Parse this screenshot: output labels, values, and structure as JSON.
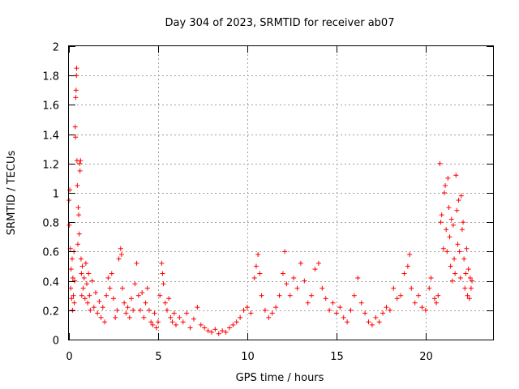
{
  "chart_data": {
    "type": "scatter",
    "title": "Day 304 of 2023, SRMTID for receiver ab07",
    "xlabel": "GPS time / hours",
    "ylabel": "SRMTID / TECUs",
    "xlim": [
      0,
      23.78
    ],
    "ylim": [
      0,
      2
    ],
    "grid": true,
    "x_ticks": [
      "0",
      "5",
      "10",
      "15",
      "20"
    ],
    "y_ticks": [
      "0",
      "0.2",
      "0.4",
      "0.6",
      "0.8",
      "1",
      "1.2",
      "1.4",
      "1.6",
      "1.8",
      "2"
    ],
    "marker": "+",
    "colors": {
      "series": "#ff0000",
      "grid": "#a0a0a0",
      "axis": "#000000"
    },
    "series": [
      {
        "name": "SRMTID",
        "points": [
          [
            0.0,
            0.95
          ],
          [
            0.02,
            0.78
          ],
          [
            0.05,
            1.02
          ],
          [
            0.08,
            0.62
          ],
          [
            0.1,
            0.35
          ],
          [
            0.12,
            0.48
          ],
          [
            0.15,
            0.28
          ],
          [
            0.18,
            0.55
          ],
          [
            0.2,
            0.2
          ],
          [
            0.22,
            0.42
          ],
          [
            0.25,
            0.3
          ],
          [
            0.28,
            0.6
          ],
          [
            0.3,
            0.25
          ],
          [
            0.32,
            0.4
          ],
          [
            0.35,
            1.45
          ],
          [
            0.37,
            1.38
          ],
          [
            0.38,
            1.65
          ],
          [
            0.4,
            1.7
          ],
          [
            0.42,
            1.8
          ],
          [
            0.43,
            1.85
          ],
          [
            0.45,
            1.22
          ],
          [
            0.47,
            1.05
          ],
          [
            0.5,
            0.65
          ],
          [
            0.52,
            0.9
          ],
          [
            0.55,
            0.85
          ],
          [
            0.58,
            0.72
          ],
          [
            0.6,
            1.2
          ],
          [
            0.62,
            1.15
          ],
          [
            0.65,
            1.22
          ],
          [
            0.68,
            0.55
          ],
          [
            0.7,
            0.45
          ],
          [
            0.72,
            0.3
          ],
          [
            0.75,
            0.5
          ],
          [
            0.8,
            0.35
          ],
          [
            0.85,
            0.42
          ],
          [
            0.9,
            0.28
          ],
          [
            0.95,
            0.52
          ],
          [
            1.0,
            0.38
          ],
          [
            1.05,
            0.25
          ],
          [
            1.1,
            0.45
          ],
          [
            1.15,
            0.3
          ],
          [
            1.2,
            0.2
          ],
          [
            1.3,
            0.4
          ],
          [
            1.4,
            0.22
          ],
          [
            1.5,
            0.32
          ],
          [
            1.6,
            0.18
          ],
          [
            1.7,
            0.26
          ],
          [
            1.8,
            0.15
          ],
          [
            1.9,
            0.22
          ],
          [
            2.0,
            0.12
          ],
          [
            2.1,
            0.3
          ],
          [
            2.2,
            0.42
          ],
          [
            2.3,
            0.35
          ],
          [
            2.4,
            0.45
          ],
          [
            2.5,
            0.28
          ],
          [
            2.6,
            0.15
          ],
          [
            2.7,
            0.2
          ],
          [
            2.8,
            0.55
          ],
          [
            2.9,
            0.62
          ],
          [
            2.95,
            0.58
          ],
          [
            3.0,
            0.35
          ],
          [
            3.1,
            0.25
          ],
          [
            3.2,
            0.18
          ],
          [
            3.3,
            0.22
          ],
          [
            3.4,
            0.15
          ],
          [
            3.5,
            0.28
          ],
          [
            3.6,
            0.2
          ],
          [
            3.7,
            0.38
          ],
          [
            3.8,
            0.52
          ],
          [
            3.9,
            0.3
          ],
          [
            4.0,
            0.2
          ],
          [
            4.1,
            0.32
          ],
          [
            4.2,
            0.15
          ],
          [
            4.3,
            0.25
          ],
          [
            4.4,
            0.35
          ],
          [
            4.5,
            0.2
          ],
          [
            4.6,
            0.12
          ],
          [
            4.7,
            0.1
          ],
          [
            4.8,
            0.18
          ],
          [
            4.9,
            0.08
          ],
          [
            5.0,
            0.12
          ],
          [
            5.1,
            0.3
          ],
          [
            5.2,
            0.52
          ],
          [
            5.25,
            0.45
          ],
          [
            5.3,
            0.38
          ],
          [
            5.4,
            0.25
          ],
          [
            5.5,
            0.2
          ],
          [
            5.6,
            0.28
          ],
          [
            5.7,
            0.15
          ],
          [
            5.8,
            0.12
          ],
          [
            5.9,
            0.18
          ],
          [
            6.0,
            0.1
          ],
          [
            6.2,
            0.15
          ],
          [
            6.4,
            0.12
          ],
          [
            6.6,
            0.18
          ],
          [
            6.8,
            0.08
          ],
          [
            7.0,
            0.14
          ],
          [
            7.2,
            0.22
          ],
          [
            7.4,
            0.1
          ],
          [
            7.6,
            0.08
          ],
          [
            7.8,
            0.06
          ],
          [
            8.0,
            0.05
          ],
          [
            8.2,
            0.07
          ],
          [
            8.4,
            0.04
          ],
          [
            8.6,
            0.06
          ],
          [
            8.8,
            0.05
          ],
          [
            9.0,
            0.08
          ],
          [
            9.2,
            0.1
          ],
          [
            9.4,
            0.12
          ],
          [
            9.6,
            0.15
          ],
          [
            9.8,
            0.2
          ],
          [
            10.0,
            0.22
          ],
          [
            10.2,
            0.18
          ],
          [
            10.4,
            0.42
          ],
          [
            10.5,
            0.5
          ],
          [
            10.6,
            0.58
          ],
          [
            10.7,
            0.45
          ],
          [
            10.8,
            0.3
          ],
          [
            11.0,
            0.2
          ],
          [
            11.2,
            0.15
          ],
          [
            11.4,
            0.18
          ],
          [
            11.6,
            0.22
          ],
          [
            11.8,
            0.3
          ],
          [
            12.0,
            0.45
          ],
          [
            12.1,
            0.6
          ],
          [
            12.2,
            0.38
          ],
          [
            12.4,
            0.3
          ],
          [
            12.6,
            0.42
          ],
          [
            12.8,
            0.35
          ],
          [
            13.0,
            0.52
          ],
          [
            13.2,
            0.4
          ],
          [
            13.4,
            0.25
          ],
          [
            13.6,
            0.3
          ],
          [
            13.8,
            0.48
          ],
          [
            14.0,
            0.52
          ],
          [
            14.2,
            0.35
          ],
          [
            14.4,
            0.28
          ],
          [
            14.6,
            0.2
          ],
          [
            14.8,
            0.25
          ],
          [
            15.0,
            0.18
          ],
          [
            15.2,
            0.22
          ],
          [
            15.4,
            0.15
          ],
          [
            15.6,
            0.12
          ],
          [
            15.8,
            0.2
          ],
          [
            16.0,
            0.3
          ],
          [
            16.2,
            0.42
          ],
          [
            16.4,
            0.25
          ],
          [
            16.6,
            0.18
          ],
          [
            16.8,
            0.12
          ],
          [
            17.0,
            0.1
          ],
          [
            17.2,
            0.15
          ],
          [
            17.4,
            0.12
          ],
          [
            17.6,
            0.18
          ],
          [
            17.8,
            0.22
          ],
          [
            18.0,
            0.2
          ],
          [
            18.2,
            0.35
          ],
          [
            18.4,
            0.28
          ],
          [
            18.6,
            0.3
          ],
          [
            18.8,
            0.45
          ],
          [
            19.0,
            0.5
          ],
          [
            19.1,
            0.58
          ],
          [
            19.2,
            0.35
          ],
          [
            19.4,
            0.25
          ],
          [
            19.6,
            0.3
          ],
          [
            19.8,
            0.22
          ],
          [
            20.0,
            0.2
          ],
          [
            20.2,
            0.35
          ],
          [
            20.3,
            0.42
          ],
          [
            20.5,
            0.28
          ],
          [
            20.6,
            0.25
          ],
          [
            20.7,
            0.3
          ],
          [
            20.8,
            1.2
          ],
          [
            20.85,
            0.8
          ],
          [
            20.9,
            0.85
          ],
          [
            21.0,
            0.62
          ],
          [
            21.05,
            1.0
          ],
          [
            21.1,
            1.05
          ],
          [
            21.15,
            0.75
          ],
          [
            21.2,
            0.6
          ],
          [
            21.25,
            1.1
          ],
          [
            21.3,
            0.9
          ],
          [
            21.35,
            0.7
          ],
          [
            21.4,
            0.5
          ],
          [
            21.45,
            0.82
          ],
          [
            21.5,
            0.4
          ],
          [
            21.55,
            0.78
          ],
          [
            21.6,
            0.55
          ],
          [
            21.65,
            0.45
          ],
          [
            21.7,
            1.12
          ],
          [
            21.75,
            0.88
          ],
          [
            21.8,
            0.65
          ],
          [
            21.85,
            0.95
          ],
          [
            21.9,
            0.6
          ],
          [
            21.95,
            0.42
          ],
          [
            22.0,
            0.98
          ],
          [
            22.05,
            0.75
          ],
          [
            22.1,
            0.8
          ],
          [
            22.15,
            0.55
          ],
          [
            22.2,
            0.35
          ],
          [
            22.25,
            0.45
          ],
          [
            22.3,
            0.62
          ],
          [
            22.35,
            0.3
          ],
          [
            22.4,
            0.48
          ],
          [
            22.45,
            0.28
          ],
          [
            22.5,
            0.42
          ],
          [
            22.55,
            0.35
          ],
          [
            22.6,
            0.4
          ]
        ]
      }
    ]
  }
}
